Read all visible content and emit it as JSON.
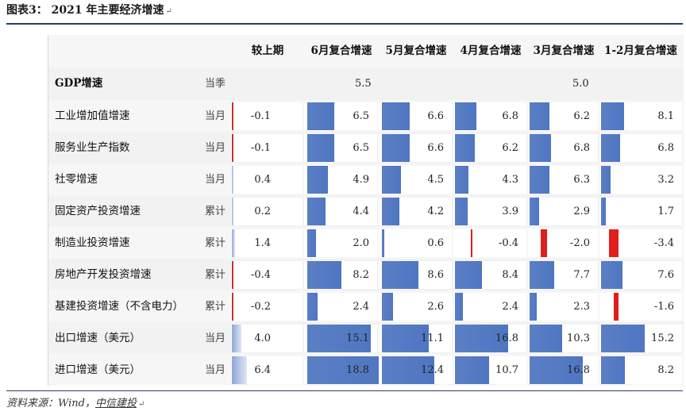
{
  "title": "图表3： 2021 年主要经济增速",
  "source": {
    "prefix": "资料来源：Wind，",
    "brand": "中信建投"
  },
  "headers": [
    "较上期",
    "6月复合增速",
    "5月复合增速",
    "4月复合增速",
    "3月复合增速",
    "1-2月复合增速"
  ],
  "gdp": {
    "label": "GDP增速",
    "unit": "当季",
    "q2": "5.5",
    "q1": "5.0"
  },
  "rows": [
    {
      "label": "工业增加值增速",
      "unit": "当月",
      "yoy": -0.1,
      "vals": [
        6.5,
        6.6,
        6.8,
        6.2,
        8.1
      ]
    },
    {
      "label": "服务业生产指数",
      "unit": "当月",
      "yoy": -0.1,
      "vals": [
        6.5,
        6.6,
        6.2,
        6.8,
        6.8
      ]
    },
    {
      "label": "社零增速",
      "unit": "当月",
      "yoy": 0.4,
      "vals": [
        4.9,
        4.5,
        4.3,
        6.3,
        3.2
      ]
    },
    {
      "label": "固定资产投资增速",
      "unit": "累计",
      "yoy": 0.2,
      "vals": [
        4.4,
        4.2,
        3.9,
        2.9,
        1.7
      ]
    },
    {
      "label": "制造业投资增速",
      "unit": "累计",
      "yoy": 1.4,
      "vals": [
        2.0,
        0.6,
        -0.4,
        -2.0,
        -3.4
      ]
    },
    {
      "label": "房地产开发投资增速",
      "unit": "累计",
      "yoy": -0.4,
      "vals": [
        8.2,
        8.6,
        8.4,
        7.7,
        7.6
      ]
    },
    {
      "label": "基建投资增速（不含电力）",
      "unit": "累计",
      "yoy": -0.2,
      "vals": [
        2.4,
        2.6,
        2.4,
        2.3,
        -1.6
      ]
    },
    {
      "label": "出口增速（美元）",
      "unit": "当月",
      "yoy": 4.0,
      "vals": [
        15.1,
        11.1,
        16.8,
        10.3,
        15.2
      ]
    },
    {
      "label": "进口增速（美元）",
      "unit": "当月",
      "yoy": 6.4,
      "vals": [
        18.8,
        12.4,
        10.7,
        16.8,
        8.2
      ]
    }
  ],
  "colors": {
    "positive_bar": "#4f76c2",
    "negative_bar": "#e01e1e",
    "rule": "#2b3f63"
  }
}
